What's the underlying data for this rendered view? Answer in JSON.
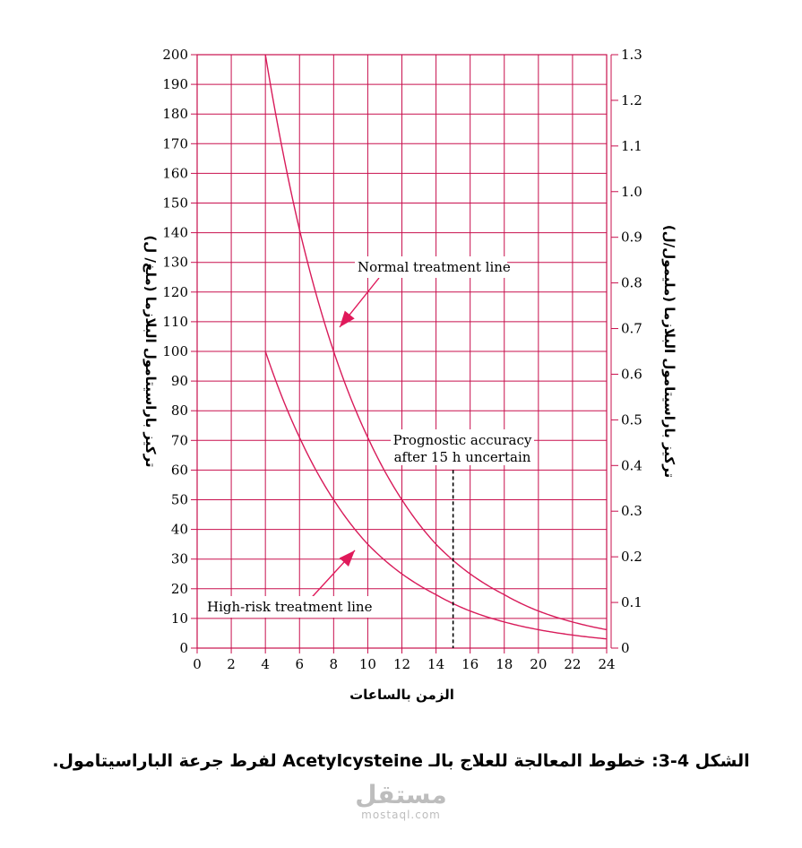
{
  "chart_data": {
    "type": "line",
    "xlabel": "الزمن بالساعات",
    "ylabel_left": "تركيز باراسيتامول البلازما (ملغ/ ل)",
    "ylabel_right": "تركيز باراسيتامول البلازما (مليمول/ل)",
    "xlim": [
      0,
      24
    ],
    "ylim_left": [
      0,
      200
    ],
    "ylim_right": [
      0,
      1.3
    ],
    "x_ticks": [
      "0",
      "2",
      "4",
      "6",
      "8",
      "10",
      "12",
      "14",
      "16",
      "18",
      "20",
      "22",
      "24"
    ],
    "y_ticks_left": [
      "0",
      "10",
      "20",
      "30",
      "40",
      "50",
      "60",
      "70",
      "80",
      "90",
      "100",
      "110",
      "120",
      "130",
      "140",
      "150",
      "160",
      "170",
      "180",
      "190",
      "200"
    ],
    "y_ticks_right": [
      "0",
      "0.1",
      "0.2",
      "0.3",
      "0.4",
      "0.5",
      "0.6",
      "0.7",
      "0.8",
      "0.9",
      "1.0",
      "1.1",
      "1.2",
      "1.3"
    ],
    "grid": true,
    "colors": {
      "grid": "#c8104e",
      "curve": "#d81b5a",
      "arrow": "#e0195a",
      "text": "#000000"
    },
    "series": [
      {
        "name": "Normal treatment line",
        "x": [
          4,
          6,
          8,
          10,
          12,
          14,
          16,
          18,
          20,
          22,
          24
        ],
        "y": [
          200,
          141,
          100,
          71,
          50,
          35,
          25,
          18,
          12.5,
          8.8,
          6.2
        ]
      },
      {
        "name": "High-risk treatment line",
        "x": [
          4,
          6,
          8,
          10,
          12,
          14,
          16,
          18,
          20,
          22,
          24
        ],
        "y": [
          100,
          71,
          50,
          35,
          25,
          18,
          12.5,
          8.8,
          6.2,
          4.4,
          3.1
        ]
      }
    ],
    "annotations": {
      "normal_label": "Normal treatment line",
      "high_label": "High-risk treatment line",
      "prognostic_line1": "Prognostic accuracy",
      "prognostic_line2": "after 15 h uncertain",
      "dashed_x": 15,
      "dashed_y_top": 60
    }
  },
  "caption": "الشكل 4-3: خطوط المعالجة للعلاج بالـ Acetylcysteine لفرط جرعة الباراسيتامول.",
  "watermark": {
    "main": "مستقل",
    "sub": "mostaql.com"
  }
}
